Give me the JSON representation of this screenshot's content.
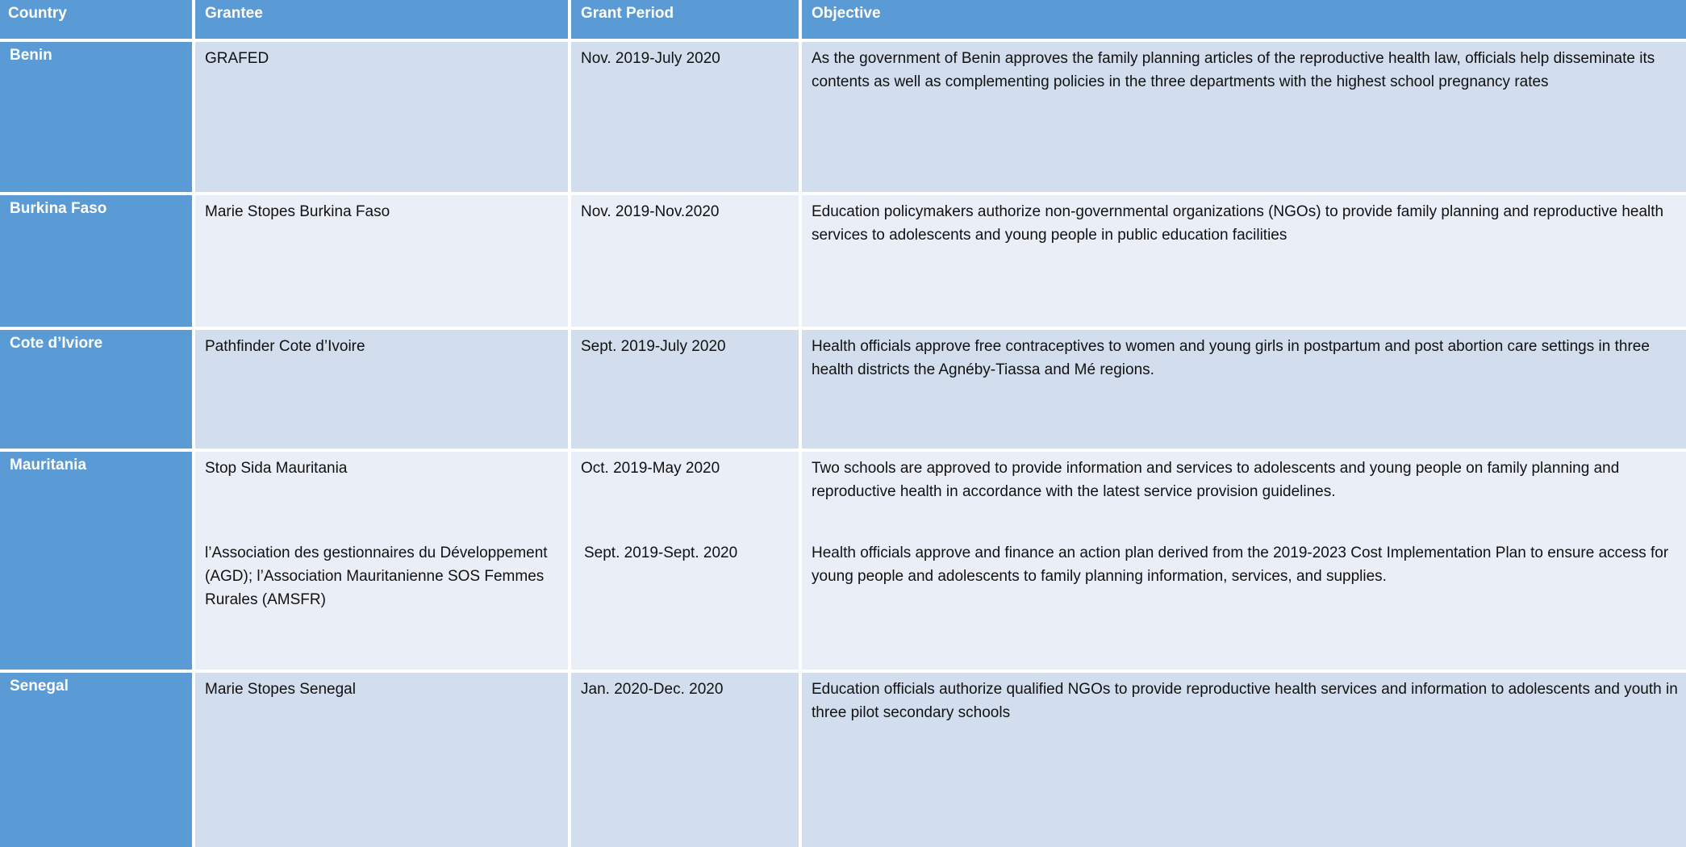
{
  "headers": {
    "country": "Country",
    "grantee": "Grantee",
    "period": "Grant Period",
    "objective": "Objective"
  },
  "rows": [
    {
      "country": "Benin",
      "grantee": "GRAFED",
      "period": "Nov. 2019-July 2020",
      "objective": "As the government of Benin approves the family planning articles of the reproductive health law, officials help disseminate its contents as well as complementing policies in the three departments with the highest school pregnancy rates"
    },
    {
      "country": "Burkina Faso",
      "grantee": "Marie Stopes Burkina Faso",
      "period": "Nov. 2019-Nov.2020",
      "objective": "Education policymakers authorize non-governmental organizations (NGOs) to provide family planning and reproductive health services to adolescents and young people in public education facilities"
    },
    {
      "country": "Cote d’Iviore",
      "grantee": "Pathfinder Cote d’Ivoire",
      "period": "Sept. 2019-July 2020",
      "objective": "Health officials approve free contraceptives to women and young girls in postpartum and post abortion care settings in three health districts the Agnéby-Tiassa and Mé regions."
    },
    {
      "country": "Mauritania",
      "grantee": "Stop Sida Mauritania",
      "period": "Oct. 2019-May 2020",
      "objective": "Two schools are approved to provide information and services to adolescents and young people on family planning and reproductive health in accordance with the latest service provision guidelines.",
      "grantee_2": "l’Association des gestionnaires du Développement (AGD); l’Association Mauritanienne SOS Femmes Rurales (AMSFR)",
      "period_2": "Sept. 2019-Sept. 2020",
      "objective_2": "Health officials approve and finance an action plan derived from the 2019-2023 Cost Implementation Plan to ensure access for young people and adolescents to family planning information, services, and supplies."
    },
    {
      "country": "Senegal",
      "grantee": "Marie Stopes Senegal",
      "period": "Jan. 2020-Dec. 2020",
      "objective": "Education officials authorize qualified NGOs to provide reproductive health services and information to adolescents and youth in three pilot secondary schools"
    }
  ]
}
